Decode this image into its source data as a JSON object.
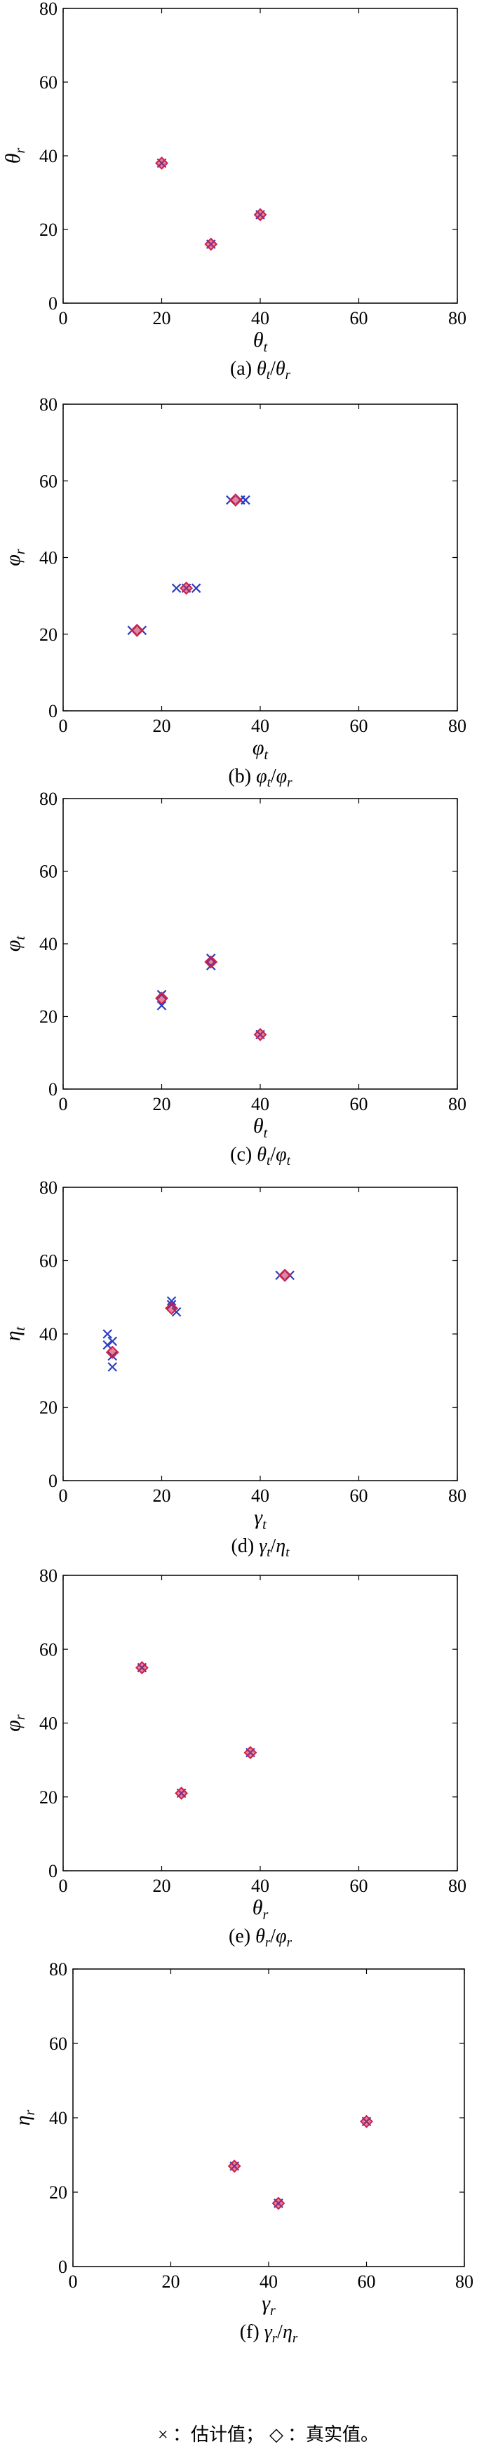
{
  "legend": {
    "estimate_marker": "×",
    "estimate_label": "：估计值；",
    "true_marker": "◇",
    "true_label": "：真实值。",
    "estimate_color": "#2b3fbf",
    "true_color": "#d0204a"
  },
  "chart_data": [
    {
      "type": "scatter",
      "caption": "(a) θt/θr",
      "xlabel": "θt",
      "ylabel": "θr",
      "xlim": [
        0,
        80
      ],
      "ylim": [
        0,
        80
      ],
      "xticks": [
        0,
        20,
        40,
        60,
        80
      ],
      "yticks": [
        0,
        20,
        40,
        60,
        80
      ],
      "grid": false,
      "series": [
        {
          "name": "估计值",
          "marker": "x",
          "color": "#2b3fbf",
          "points": [
            [
              20,
              38
            ],
            [
              30,
              16
            ],
            [
              40,
              24
            ]
          ]
        },
        {
          "name": "真实值",
          "marker": "diamond",
          "color": "#d0204a",
          "points": [
            [
              20,
              38
            ],
            [
              30,
              16
            ],
            [
              40,
              24
            ]
          ]
        }
      ]
    },
    {
      "type": "scatter",
      "caption": "(b) φt/φr",
      "xlabel": "φt",
      "ylabel": "φr",
      "xlim": [
        0,
        80
      ],
      "ylim": [
        0,
        80
      ],
      "xticks": [
        0,
        20,
        40,
        60,
        80
      ],
      "yticks": [
        0,
        20,
        40,
        60,
        80
      ],
      "grid": false,
      "series": [
        {
          "name": "估计值",
          "marker": "x",
          "color": "#2b3fbf",
          "points": [
            [
              14,
              21
            ],
            [
              16,
              21
            ],
            [
              23,
              32
            ],
            [
              25,
              32
            ],
            [
              27,
              32
            ],
            [
              34,
              55
            ],
            [
              36,
              55
            ],
            [
              37,
              55
            ]
          ]
        },
        {
          "name": "真实值",
          "marker": "diamond",
          "color": "#d0204a",
          "points": [
            [
              15,
              21
            ],
            [
              25,
              32
            ],
            [
              35,
              55
            ]
          ]
        }
      ]
    },
    {
      "type": "scatter",
      "caption": "(c) θt/φt",
      "xlabel": "θt",
      "ylabel": "φt",
      "xlim": [
        0,
        80
      ],
      "ylim": [
        0,
        80
      ],
      "xticks": [
        0,
        20,
        40,
        60,
        80
      ],
      "yticks": [
        0,
        20,
        40,
        60,
        80
      ],
      "grid": false,
      "series": [
        {
          "name": "估计值",
          "marker": "x",
          "color": "#2b3fbf",
          "points": [
            [
              20,
              23
            ],
            [
              20,
              26
            ],
            [
              30,
              34
            ],
            [
              30,
              36
            ],
            [
              40,
              15
            ]
          ]
        },
        {
          "name": "真实值",
          "marker": "diamond",
          "color": "#d0204a",
          "points": [
            [
              20,
              25
            ],
            [
              30,
              35
            ],
            [
              40,
              15
            ]
          ]
        }
      ]
    },
    {
      "type": "scatter",
      "caption": "(d) γt/ηt",
      "xlabel": "γt",
      "ylabel": "ηt",
      "xlim": [
        0,
        80
      ],
      "ylim": [
        0,
        80
      ],
      "xticks": [
        0,
        20,
        40,
        60,
        80
      ],
      "yticks": [
        0,
        20,
        40,
        60,
        80
      ],
      "grid": false,
      "series": [
        {
          "name": "估计值",
          "marker": "x",
          "color": "#2b3fbf",
          "points": [
            [
              9,
              40
            ],
            [
              9,
              37
            ],
            [
              10,
              34
            ],
            [
              10,
              31
            ],
            [
              10,
              38
            ],
            [
              22,
              49
            ],
            [
              23,
              46
            ],
            [
              22,
              48
            ],
            [
              44,
              56
            ],
            [
              46,
              56
            ]
          ]
        },
        {
          "name": "真实值",
          "marker": "diamond",
          "color": "#d0204a",
          "points": [
            [
              10,
              35
            ],
            [
              22,
              47
            ],
            [
              45,
              56
            ]
          ]
        }
      ]
    },
    {
      "type": "scatter",
      "caption": "(e) θr/φr",
      "xlabel": "θr",
      "ylabel": "φr",
      "xlim": [
        0,
        80
      ],
      "ylim": [
        0,
        80
      ],
      "xticks": [
        0,
        20,
        40,
        60,
        80
      ],
      "yticks": [
        0,
        20,
        40,
        60,
        80
      ],
      "grid": false,
      "series": [
        {
          "name": "估计值",
          "marker": "x",
          "color": "#2b3fbf",
          "points": [
            [
              16,
              55
            ],
            [
              24,
              21
            ],
            [
              38,
              32
            ]
          ]
        },
        {
          "name": "真实值",
          "marker": "diamond",
          "color": "#d0204a",
          "points": [
            [
              16,
              55
            ],
            [
              24,
              21
            ],
            [
              38,
              32
            ]
          ]
        }
      ]
    },
    {
      "type": "scatter",
      "caption": "(f) γr/ηr",
      "xlabel": "γr",
      "ylabel": "ηr",
      "xlim": [
        0,
        80
      ],
      "ylim": [
        0,
        80
      ],
      "xticks": [
        0,
        20,
        40,
        60,
        80
      ],
      "yticks": [
        0,
        20,
        40,
        60,
        80
      ],
      "grid": false,
      "series": [
        {
          "name": "估计值",
          "marker": "x",
          "color": "#2b3fbf",
          "points": [
            [
              33,
              27
            ],
            [
              42,
              17
            ],
            [
              60,
              39
            ]
          ]
        },
        {
          "name": "真实值",
          "marker": "diamond",
          "color": "#d0204a",
          "points": [
            [
              33,
              27
            ],
            [
              42,
              17
            ],
            [
              60,
              39
            ]
          ]
        }
      ]
    }
  ]
}
